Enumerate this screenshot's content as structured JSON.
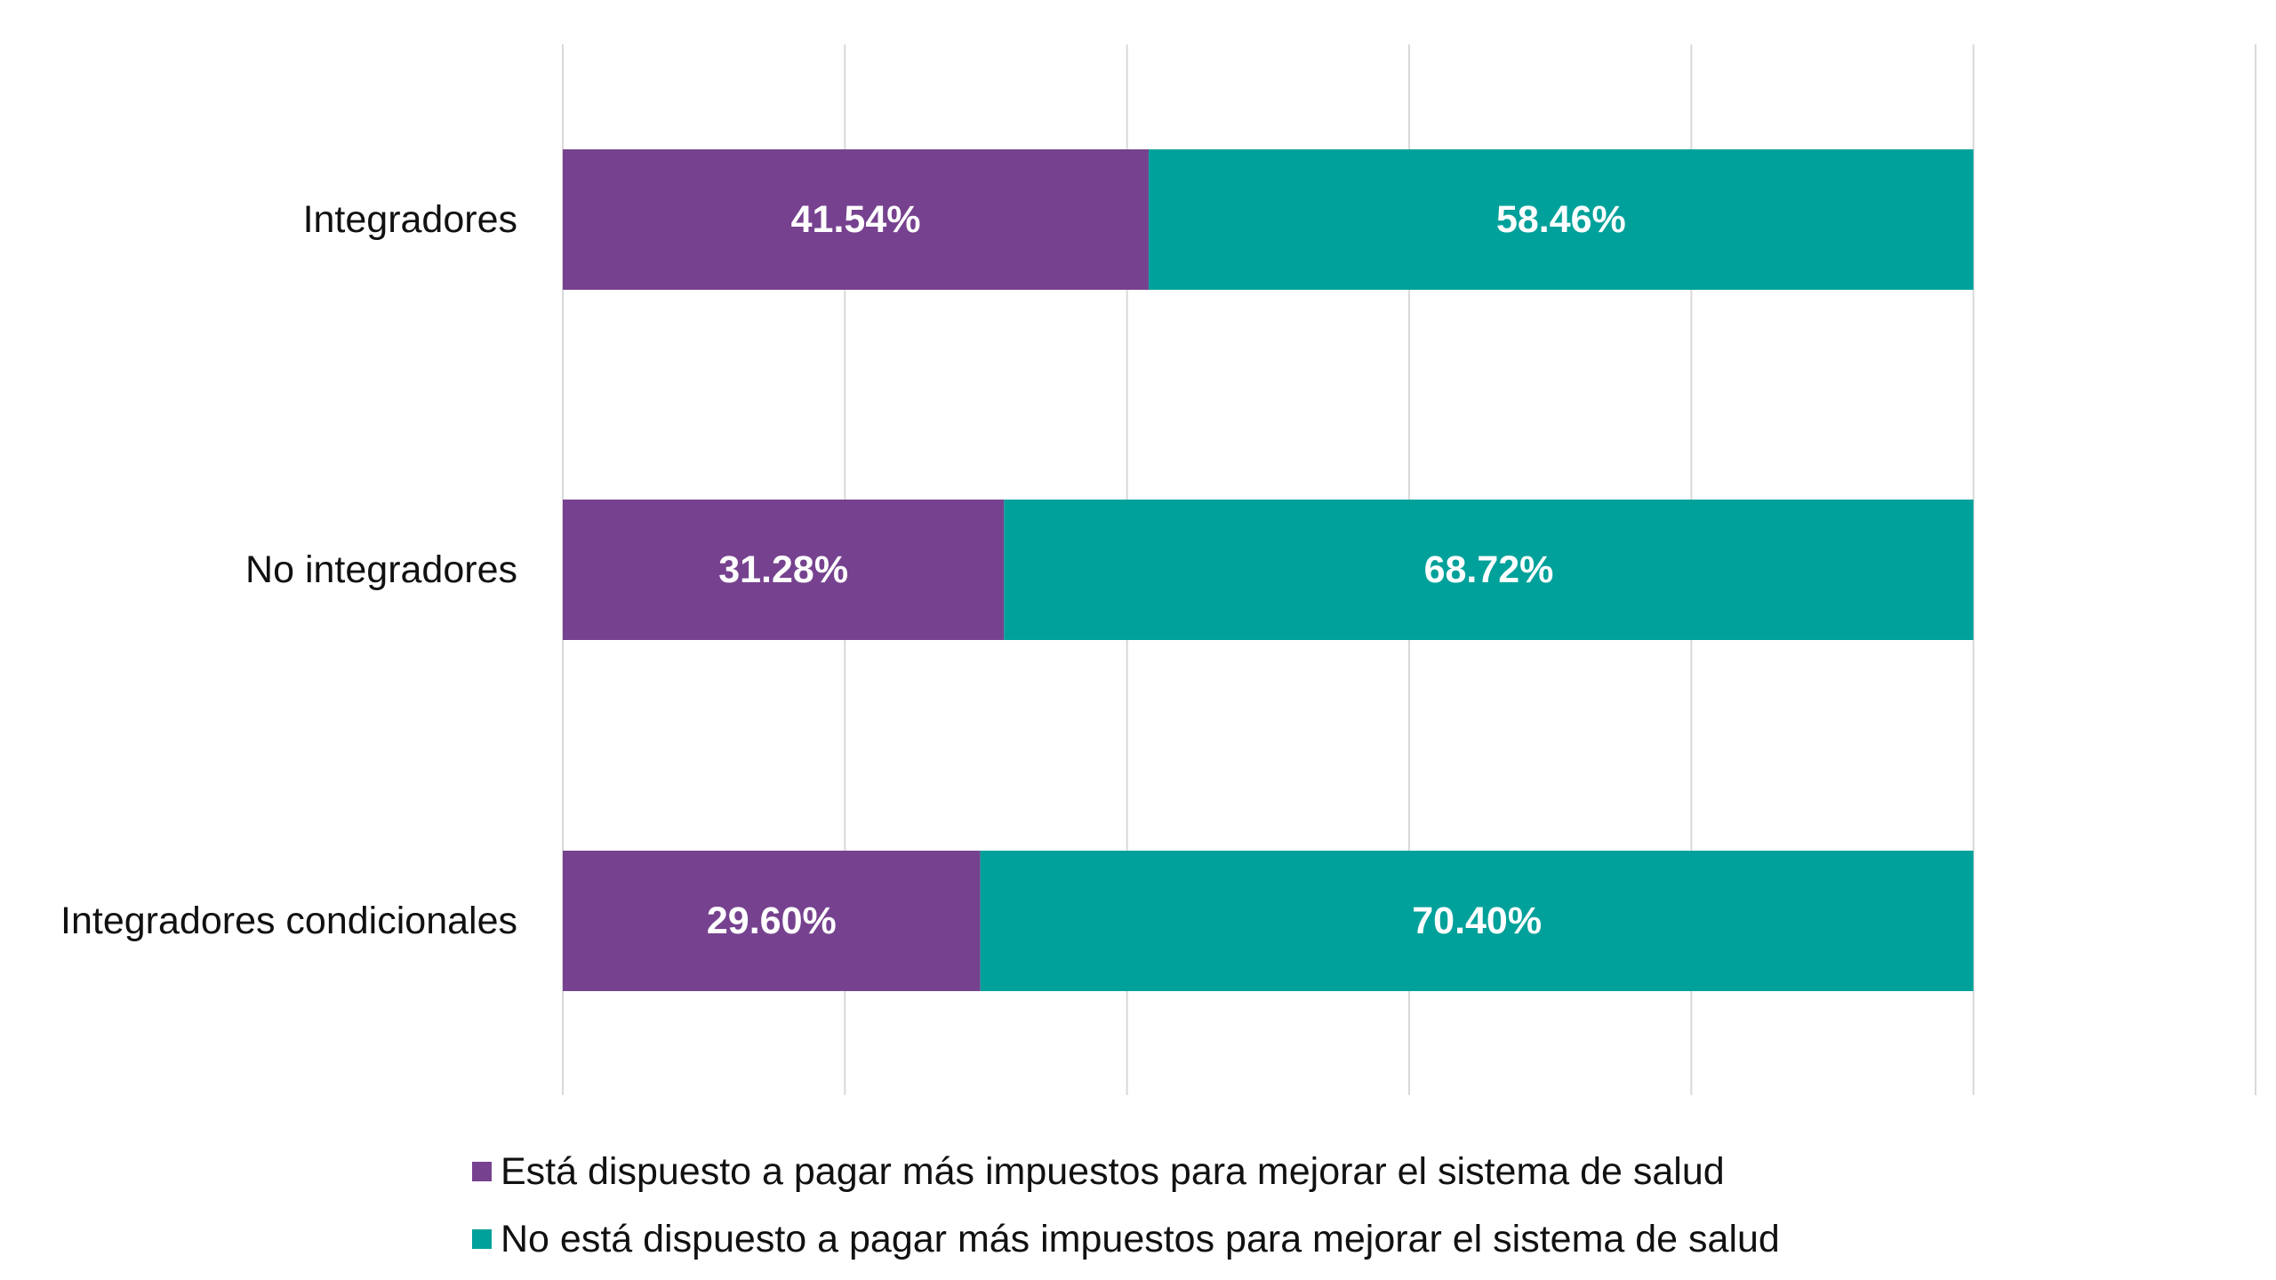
{
  "chart_data": {
    "type": "bar",
    "orientation": "horizontal",
    "stacked": true,
    "categories": [
      "Integradores",
      "No integradores",
      "Integradores condicionales"
    ],
    "series": [
      {
        "name": "Está dispuesto a pagar más impuestos para mejorar el sistema de salud",
        "values": [
          41.54,
          31.28,
          29.6
        ],
        "labels": [
          "41.54%",
          "31.28%",
          "29.60%"
        ],
        "color": "#76428f"
      },
      {
        "name": "No está dispuesto a pagar más impuestos para mejorar el sistema de salud",
        "values": [
          58.46,
          68.72,
          70.4
        ],
        "labels": [
          "58.46%",
          "68.72%",
          "70.40%"
        ],
        "color": "#00a19a"
      }
    ],
    "xlim": [
      0,
      120
    ],
    "x_gridline_step": 20,
    "grid": true,
    "gridline_color": "#d9d9d9",
    "legend_position": "bottom",
    "title": "",
    "xlabel": "",
    "ylabel": ""
  }
}
